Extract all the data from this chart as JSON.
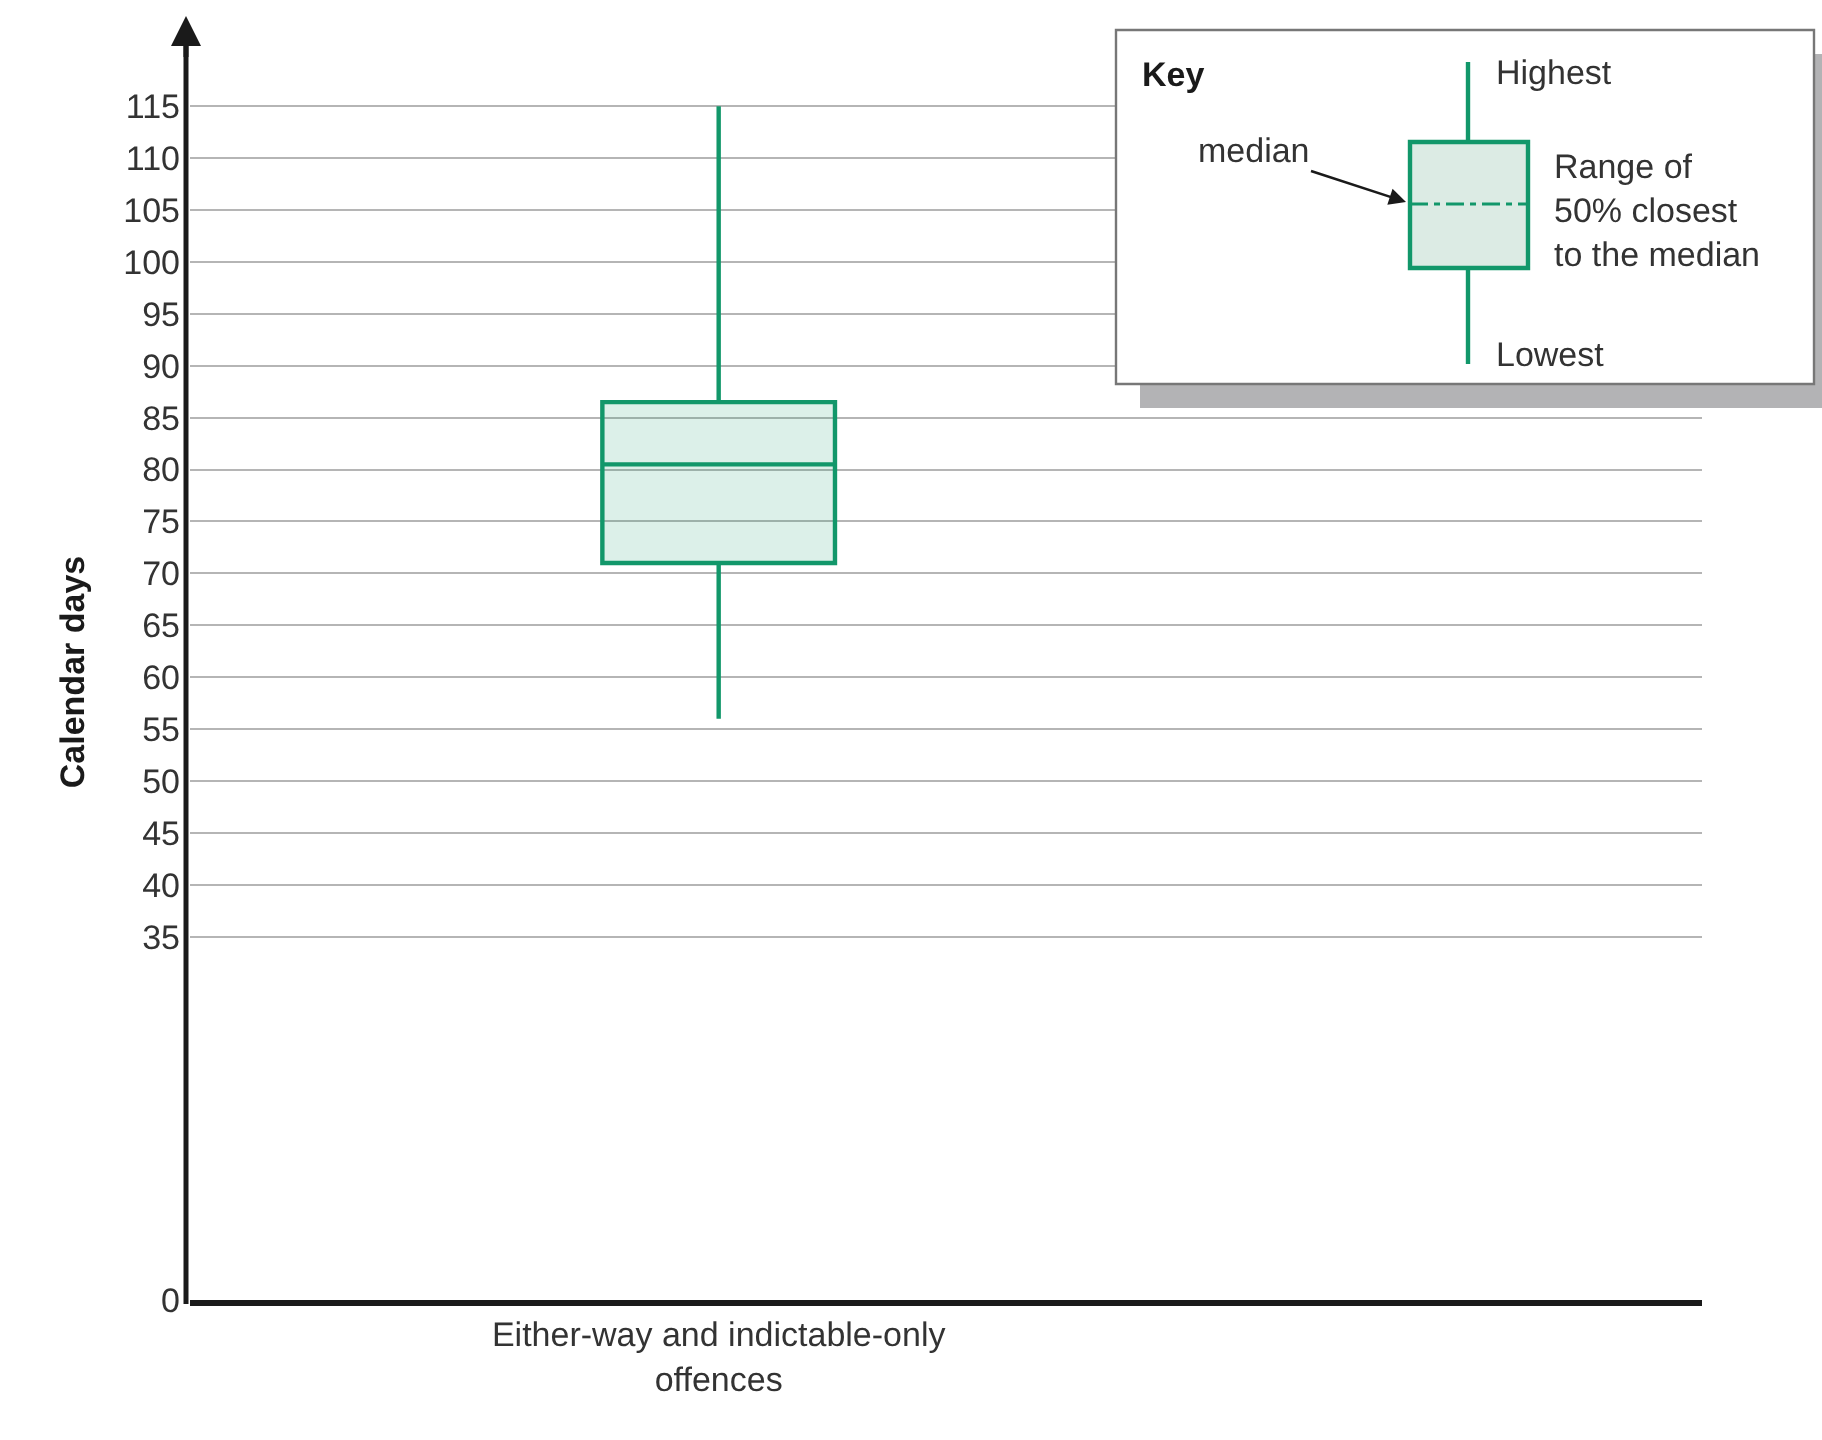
{
  "chart_data": {
    "type": "box",
    "ylabel": "Calendar days",
    "categories": [
      "Either-way and indictable-only\noffences"
    ],
    "series": [
      {
        "color": "#12976a",
        "boxes": [
          {
            "low": 56,
            "q1": 71,
            "median": 80.5,
            "q3": 86.5,
            "high": 115
          }
        ]
      }
    ],
    "ylim": [
      0,
      121
    ],
    "yticks": [
      0,
      35,
      40,
      45,
      50,
      55,
      60,
      65,
      70,
      75,
      80,
      85,
      90,
      95,
      100,
      105,
      110,
      115
    ],
    "grid": "y",
    "annotations": [
      "Key",
      "Highest",
      "median",
      "Range of\n50% closest\nto the median",
      "Lowest"
    ]
  }
}
